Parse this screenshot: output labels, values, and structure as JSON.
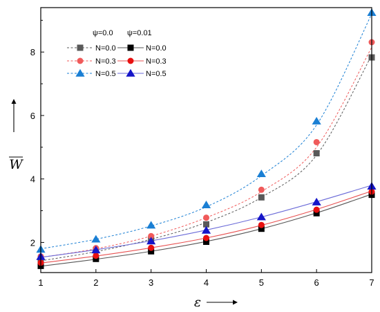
{
  "chart_data": {
    "type": "line",
    "xlabel": "ε",
    "ylabel": "W",
    "xlim": [
      1,
      7
    ],
    "ylim": [
      1.05,
      9.4
    ],
    "x_ticks": [
      1,
      2,
      3,
      4,
      5,
      6,
      7
    ],
    "y_ticks": [
      2,
      4,
      6,
      8
    ],
    "legend_position": "top-left",
    "legend_headers": [
      "ψ=0.0",
      "ψ=0.01"
    ],
    "series": [
      {
        "name": "N=0.0",
        "group": "ψ=0.0",
        "color": "#595959",
        "marker": "square",
        "dash": true,
        "x": [
          1,
          2,
          3,
          4,
          5,
          6,
          7
        ],
        "values": [
          1.45,
          1.75,
          2.1,
          2.57,
          3.42,
          4.81,
          7.83
        ],
        "fit": [
          1.42,
          1.71,
          2.1,
          2.63,
          3.42,
          4.75,
          7.9
        ]
      },
      {
        "name": "N=0.3",
        "group": "ψ=0.0",
        "color": "#f05a5a",
        "marker": "circle",
        "dash": true,
        "x": [
          1,
          2,
          3,
          4,
          5,
          6,
          7
        ],
        "values": [
          1.56,
          1.82,
          2.2,
          2.78,
          3.66,
          5.16,
          8.31
        ],
        "fit": [
          1.53,
          1.8,
          2.2,
          2.78,
          3.6,
          5.0,
          8.15
        ]
      },
      {
        "name": "N=0.5",
        "group": "ψ=0.0",
        "color": "#1a7fd4",
        "marker": "triangle",
        "dash": true,
        "x": [
          1,
          2,
          3,
          4,
          5,
          6,
          7
        ],
        "values": [
          1.78,
          2.1,
          2.54,
          3.18,
          4.16,
          5.82,
          9.24
        ],
        "fit": [
          1.8,
          2.1,
          2.52,
          3.12,
          4.1,
          5.7,
          9.2
        ]
      },
      {
        "name": "N=0.0",
        "group": "ψ=0.01",
        "color": "#000000",
        "line_color": "#555555",
        "marker": "square",
        "dash": false,
        "x": [
          1,
          2,
          3,
          4,
          5,
          6,
          7
        ],
        "values": [
          1.26,
          1.48,
          1.72,
          2.02,
          2.43,
          2.92,
          3.5
        ],
        "fit": [
          1.25,
          1.47,
          1.72,
          2.03,
          2.43,
          2.93,
          3.52
        ]
      },
      {
        "name": "N=0.3",
        "group": "ψ=0.01",
        "color": "#e81010",
        "line_color": "#e85050",
        "marker": "circle",
        "dash": false,
        "x": [
          1,
          2,
          3,
          4,
          5,
          6,
          7
        ],
        "values": [
          1.36,
          1.58,
          1.83,
          2.14,
          2.55,
          3.03,
          3.6
        ],
        "fit": [
          1.35,
          1.57,
          1.83,
          2.14,
          2.54,
          3.04,
          3.62
        ]
      },
      {
        "name": "N=0.5",
        "group": "ψ=0.01",
        "color": "#1515c8",
        "line_color": "#6a6ad8",
        "marker": "triangle",
        "dash": false,
        "x": [
          1,
          2,
          3,
          4,
          5,
          6,
          7
        ],
        "values": [
          1.55,
          1.76,
          2.04,
          2.38,
          2.8,
          3.27,
          3.77
        ],
        "fit": [
          1.53,
          1.77,
          2.05,
          2.39,
          2.8,
          3.28,
          3.8
        ]
      }
    ]
  }
}
